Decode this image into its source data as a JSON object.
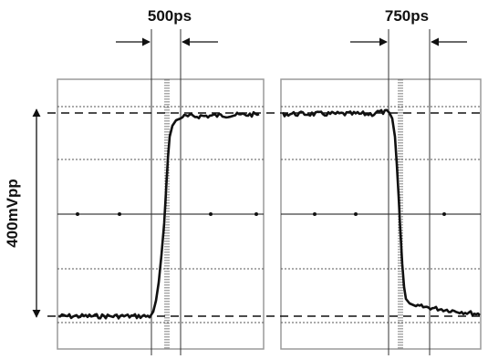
{
  "labels": {
    "rise_time": "500ps",
    "fall_time": "750ps",
    "amplitude": "400mVpp"
  },
  "colors": {
    "ink": "#111111",
    "frame": "#9a9a9a",
    "grid": "#555555"
  }
}
